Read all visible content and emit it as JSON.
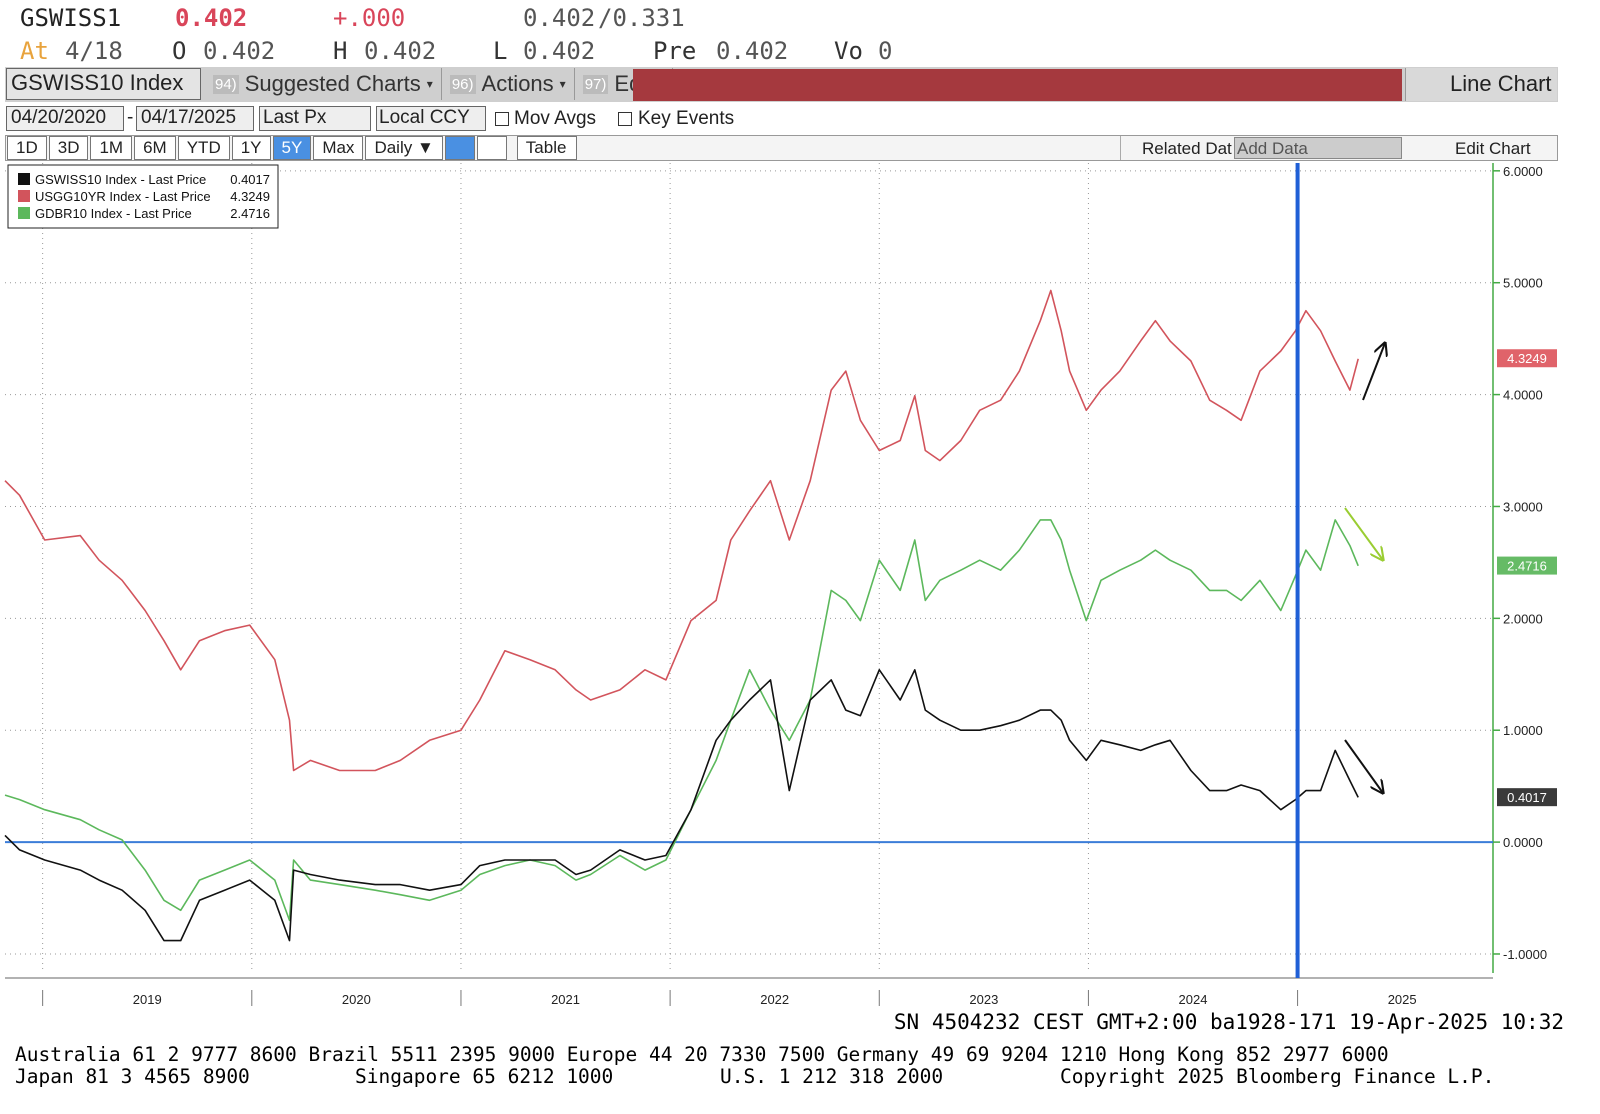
{
  "header": {
    "ticker": "GSWISS1",
    "last": "0.402",
    "change": "+.000",
    "bid": "0.402",
    "ask": "/0.331",
    "at_label": "At",
    "at_date": "4/18",
    "open_label": "O",
    "open": "0.402",
    "high_label": "H",
    "high": "0.402",
    "low_label": "L",
    "low": "0.402",
    "pre_label": "Pre",
    "pre": "0.402",
    "vol_label": "Vo",
    "vol": "0"
  },
  "toolbar": {
    "security": "GSWISS10 Index",
    "menu": [
      {
        "num": "94)",
        "label": "Suggested Charts"
      },
      {
        "num": "96)",
        "label": "Actions"
      },
      {
        "num": "97)",
        "label": "Edit"
      }
    ],
    "chart_type": "Line Chart",
    "start_date": "04/20/2020",
    "dash": "-",
    "end_date": "04/17/2025",
    "field": "Last Px",
    "currency": "Local CCY",
    "mov_avgs": "Mov Avgs",
    "key_events": "Key Events",
    "periods": [
      "1D",
      "3D",
      "1M",
      "6M",
      "YTD",
      "1Y",
      "5Y",
      "Max"
    ],
    "active_period": "5Y",
    "frequency": "Daily",
    "table": "Table",
    "related": "Related Dat",
    "add_data": "Add Data",
    "edit_chart": "Edit Chart"
  },
  "chart_data": {
    "type": "line",
    "x": [
      2018.82,
      2018.89,
      2019.01,
      2019.18,
      2019.27,
      2019.38,
      2019.49,
      2019.58,
      2019.66,
      2019.75,
      2019.87,
      2019.99,
      2020.11,
      2020.18,
      2020.2,
      2020.28,
      2020.42,
      2020.59,
      2020.71,
      2020.85,
      2021.0,
      2021.09,
      2021.21,
      2021.33,
      2021.45,
      2021.55,
      2021.62,
      2021.76,
      2021.88,
      2021.98,
      2022.1,
      2022.22,
      2022.29,
      2022.38,
      2022.48,
      2022.57,
      2022.67,
      2022.77,
      2022.84,
      2022.91,
      2023.0,
      2023.1,
      2023.17,
      2023.22,
      2023.29,
      2023.39,
      2023.48,
      2023.58,
      2023.67,
      2023.77,
      2023.82,
      2023.87,
      2023.91,
      2023.99,
      2024.06,
      2024.15,
      2024.25,
      2024.32,
      2024.39,
      2024.49,
      2024.58,
      2024.66,
      2024.73,
      2024.82,
      2024.92,
      2024.99,
      2025.04,
      2025.11,
      2025.18,
      2025.25,
      2025.29
    ],
    "series": [
      {
        "name": "GSWISS10 Index - Last Price",
        "color": "#111111",
        "tag_color": "#3a3a3a",
        "last_value": 0.4017,
        "values": [
          0.06,
          -0.07,
          -0.16,
          -0.25,
          -0.34,
          -0.43,
          -0.61,
          -0.88,
          -0.88,
          -0.52,
          -0.43,
          -0.34,
          -0.52,
          -0.88,
          -0.25,
          -0.29,
          -0.34,
          -0.38,
          -0.38,
          -0.43,
          -0.38,
          -0.21,
          -0.16,
          -0.16,
          -0.16,
          -0.29,
          -0.25,
          -0.07,
          -0.16,
          -0.12,
          0.29,
          0.91,
          1.09,
          1.27,
          1.45,
          0.46,
          1.27,
          1.45,
          1.18,
          1.13,
          1.54,
          1.27,
          1.54,
          1.18,
          1.09,
          1.0,
          1.0,
          1.04,
          1.09,
          1.18,
          1.18,
          1.09,
          0.91,
          0.73,
          0.91,
          0.87,
          0.82,
          0.87,
          0.91,
          0.64,
          0.46,
          0.46,
          0.51,
          0.46,
          0.29,
          0.38,
          0.46,
          0.46,
          0.82,
          0.55,
          0.4
        ]
      },
      {
        "name": "USGG10YR Index - Last Price",
        "color": "#d2545c",
        "tag_color": "#e0636a",
        "last_value": 4.3249,
        "values": [
          3.23,
          3.1,
          2.7,
          2.74,
          2.52,
          2.34,
          2.07,
          1.8,
          1.54,
          1.8,
          1.89,
          1.94,
          1.63,
          1.09,
          0.64,
          0.73,
          0.64,
          0.64,
          0.73,
          0.91,
          1.0,
          1.27,
          1.71,
          1.63,
          1.54,
          1.36,
          1.27,
          1.36,
          1.54,
          1.45,
          1.98,
          2.16,
          2.7,
          2.96,
          3.23,
          2.7,
          3.23,
          4.04,
          4.21,
          3.77,
          3.5,
          3.59,
          3.99,
          3.5,
          3.41,
          3.59,
          3.86,
          3.95,
          4.21,
          4.66,
          4.93,
          4.57,
          4.21,
          3.86,
          4.04,
          4.21,
          4.48,
          4.66,
          4.48,
          4.3,
          3.95,
          3.86,
          3.77,
          4.21,
          4.39,
          4.57,
          4.75,
          4.57,
          4.3,
          4.04,
          4.32
        ]
      },
      {
        "name": "GDBR10 Index - Last Price",
        "color": "#5cb85c",
        "tag_color": "#66bb66",
        "last_value": 2.4716,
        "values": [
          0.42,
          0.38,
          0.29,
          0.2,
          0.11,
          0.02,
          -0.25,
          -0.52,
          -0.61,
          -0.34,
          -0.25,
          -0.16,
          -0.34,
          -0.7,
          -0.16,
          -0.34,
          -0.38,
          -0.43,
          -0.47,
          -0.52,
          -0.43,
          -0.29,
          -0.21,
          -0.16,
          -0.21,
          -0.34,
          -0.29,
          -0.12,
          -0.25,
          -0.16,
          0.29,
          0.73,
          1.09,
          1.54,
          1.18,
          0.91,
          1.27,
          2.25,
          2.16,
          1.98,
          2.52,
          2.25,
          2.7,
          2.16,
          2.34,
          2.43,
          2.52,
          2.43,
          2.61,
          2.88,
          2.88,
          2.7,
          2.43,
          1.98,
          2.34,
          2.43,
          2.52,
          2.61,
          2.52,
          2.43,
          2.25,
          2.25,
          2.16,
          2.34,
          2.07,
          2.38,
          2.61,
          2.43,
          2.88,
          2.65,
          2.47
        ]
      }
    ],
    "xlim": [
      2018.82,
      2025.92
    ],
    "xticks": [
      2019,
      2020,
      2021,
      2022,
      2023,
      2024,
      2025
    ],
    "ylim": [
      -1.17,
      6.07
    ],
    "yticks": [
      {
        "value": -1,
        "label": "-1.0000"
      },
      {
        "value": 0,
        "label": "0.0000"
      },
      {
        "value": 1,
        "label": "1.0000"
      },
      {
        "value": 2,
        "label": "2.0000"
      },
      {
        "value": 3,
        "label": "3.0000"
      },
      {
        "value": 4,
        "label": "4.0000"
      },
      {
        "value": 5,
        "label": "5.0000"
      },
      {
        "value": 6,
        "label": "6.0000"
      }
    ],
    "grid": true,
    "legend": "upper left",
    "hline": 0,
    "vline": 2025.0
  },
  "footer": {
    "status": "SN 4504232 CEST GMT+2:00 ba1928-171 19-Apr-2025 10:32",
    "line1": "Australia 61 2 9777 8600 Brazil 5511 2395 9000 Europe 44 20 7330 7500 Germany 49 69 9204 1210 Hong Kong 852 2977 6000",
    "line2": [
      "Japan 81 3 4565 8900",
      "Singapore 65 6212 1000",
      "U.S. 1 212 318 2000",
      "Copyright 2025 Bloomberg Finance L.P."
    ]
  }
}
